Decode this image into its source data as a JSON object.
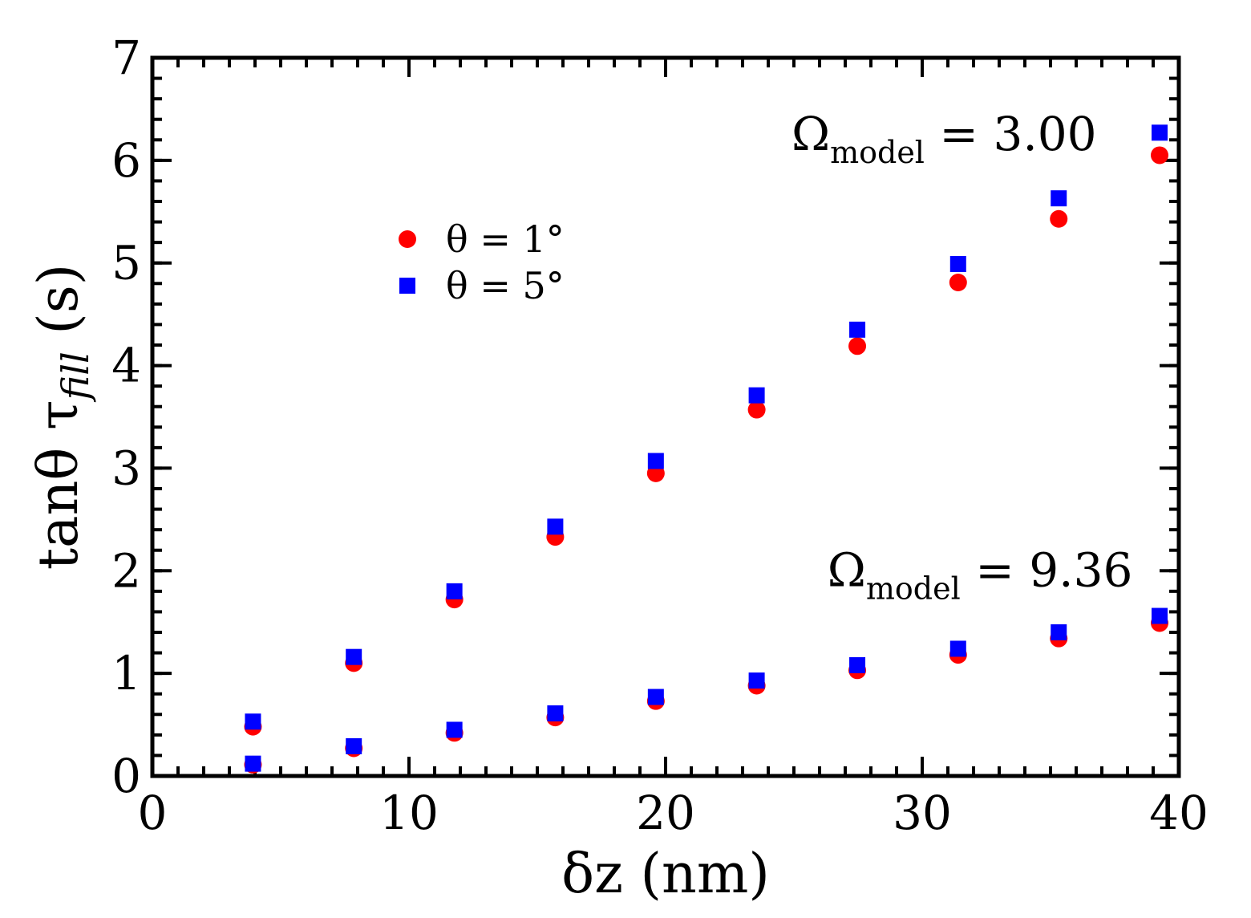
{
  "chart_data": {
    "type": "scatter",
    "title": "",
    "xlabel": "δz  (nm)",
    "ylabel": {
      "prefix": "tanθ τ",
      "subscript": "fill",
      "suffix": "  (s)"
    },
    "xlim": [
      0,
      40
    ],
    "ylim": [
      0,
      7
    ],
    "xticks": [
      0,
      10,
      20,
      30,
      40
    ],
    "yticks": [
      0,
      1,
      2,
      3,
      4,
      5,
      6,
      7
    ],
    "x_minor_step": 1,
    "y_minor_step": 0.2,
    "legend": {
      "position": "upper-left-center",
      "entries": [
        {
          "label": "θ = 1°",
          "marker": "circle",
          "color": "#ff0000"
        },
        {
          "label": "θ = 5°",
          "marker": "square",
          "color": "#0000ff"
        }
      ]
    },
    "series": [
      {
        "name": "θ = 1°, Ω = 3.00",
        "marker": "circle",
        "color": "#ff0000",
        "x": [
          3.92,
          7.85,
          11.77,
          15.7,
          19.62,
          23.55,
          27.47,
          31.4,
          35.32,
          39.25
        ],
        "y": [
          0.48,
          1.1,
          1.72,
          2.33,
          2.95,
          3.57,
          4.19,
          4.81,
          5.43,
          6.05
        ]
      },
      {
        "name": "θ = 5°, Ω = 3.00",
        "marker": "square",
        "color": "#0000ff",
        "x": [
          3.92,
          7.85,
          11.77,
          15.7,
          19.62,
          23.55,
          27.47,
          31.4,
          35.32,
          39.25
        ],
        "y": [
          0.53,
          1.16,
          1.8,
          2.43,
          3.07,
          3.71,
          4.35,
          4.99,
          5.63,
          6.27
        ]
      },
      {
        "name": "θ = 1°, Ω = 9.36",
        "marker": "circle",
        "color": "#ff0000",
        "x": [
          3.92,
          7.85,
          11.77,
          15.7,
          19.62,
          23.55,
          27.47,
          31.4,
          35.32,
          39.25
        ],
        "y": [
          0.11,
          0.27,
          0.42,
          0.57,
          0.73,
          0.88,
          1.03,
          1.18,
          1.34,
          1.49
        ]
      },
      {
        "name": "θ = 5°, Ω = 9.36",
        "marker": "square",
        "color": "#0000ff",
        "x": [
          3.92,
          7.85,
          11.77,
          15.7,
          19.62,
          23.55,
          27.47,
          31.4,
          35.32,
          39.25
        ],
        "y": [
          0.12,
          0.29,
          0.45,
          0.61,
          0.77,
          0.93,
          1.08,
          1.24,
          1.4,
          1.56
        ]
      }
    ],
    "annotations": [
      {
        "id": "upper",
        "main": "Ω",
        "subscript": "model",
        "rest": " = 3.00",
        "anchor_x": 36.8,
        "anchor_y": 6.1
      },
      {
        "id": "lower",
        "main": "Ω",
        "subscript": "model",
        "rest": " = 9.36",
        "anchor_x": 38.2,
        "anchor_y": 1.85
      }
    ]
  }
}
